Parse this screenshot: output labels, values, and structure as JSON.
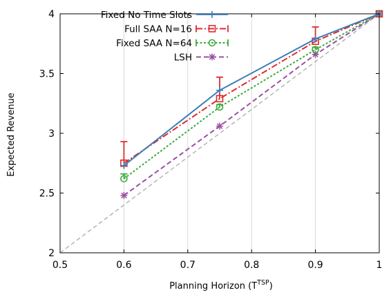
{
  "chart_data": {
    "type": "line",
    "xlabel": "Planning Horizon (T",
    "xlabel_sup": "TSP",
    "xlabel_end": ")",
    "ylabel": "Expected Revenue",
    "xlim": [
      0.5,
      1.0
    ],
    "ylim": [
      2.0,
      4.1
    ],
    "x_ticks": [
      0.5,
      0.6,
      0.7,
      0.8,
      0.9,
      1.0
    ],
    "x_tick_labels": [
      "0.5",
      "0.6",
      "0.7",
      "0.8",
      "0.9",
      "1"
    ],
    "y_ticks": [
      2.0,
      2.5,
      3.0,
      3.5,
      4.0
    ],
    "y_tick_labels": [
      "2",
      "2.5",
      "3",
      "3.5",
      "4"
    ],
    "grid": "vertical at x ticks",
    "legend_position": "top-left",
    "reference_line": {
      "x": [
        0.5,
        1.0
      ],
      "y": [
        2.0,
        4.0
      ],
      "color": "#aaaaaa"
    },
    "series": [
      {
        "name": "Fixed No Time Slots",
        "color": "#3b7fb8",
        "marker": "plus",
        "dash": "solid",
        "x": [
          0.6,
          0.75,
          0.9,
          1.0
        ],
        "y": [
          2.73,
          3.36,
          3.79,
          4.0
        ]
      },
      {
        "name": "Full SAA N=16",
        "color": "#dd2b2b",
        "marker": "square",
        "dash": "dashdot",
        "x": [
          0.6,
          0.75,
          0.9,
          1.0
        ],
        "y": [
          2.75,
          3.29,
          3.77,
          4.0
        ],
        "err_upper": [
          2.93,
          3.47,
          3.89,
          4.0
        ]
      },
      {
        "name": "Fixed SAA N=64",
        "color": "#3daa3d",
        "marker": "circle",
        "dash": "dotted",
        "x": [
          0.6,
          0.75,
          0.9,
          1.0
        ],
        "y": [
          2.62,
          3.22,
          3.7,
          4.0
        ],
        "err_upper": [
          2.66,
          3.24,
          3.72,
          4.0
        ]
      },
      {
        "name": "LSH",
        "color": "#9b4ea3",
        "marker": "star",
        "dash": "dashed",
        "x": [
          0.6,
          0.75,
          0.9,
          1.0
        ],
        "y": [
          2.48,
          3.06,
          3.66,
          4.0
        ]
      }
    ]
  }
}
